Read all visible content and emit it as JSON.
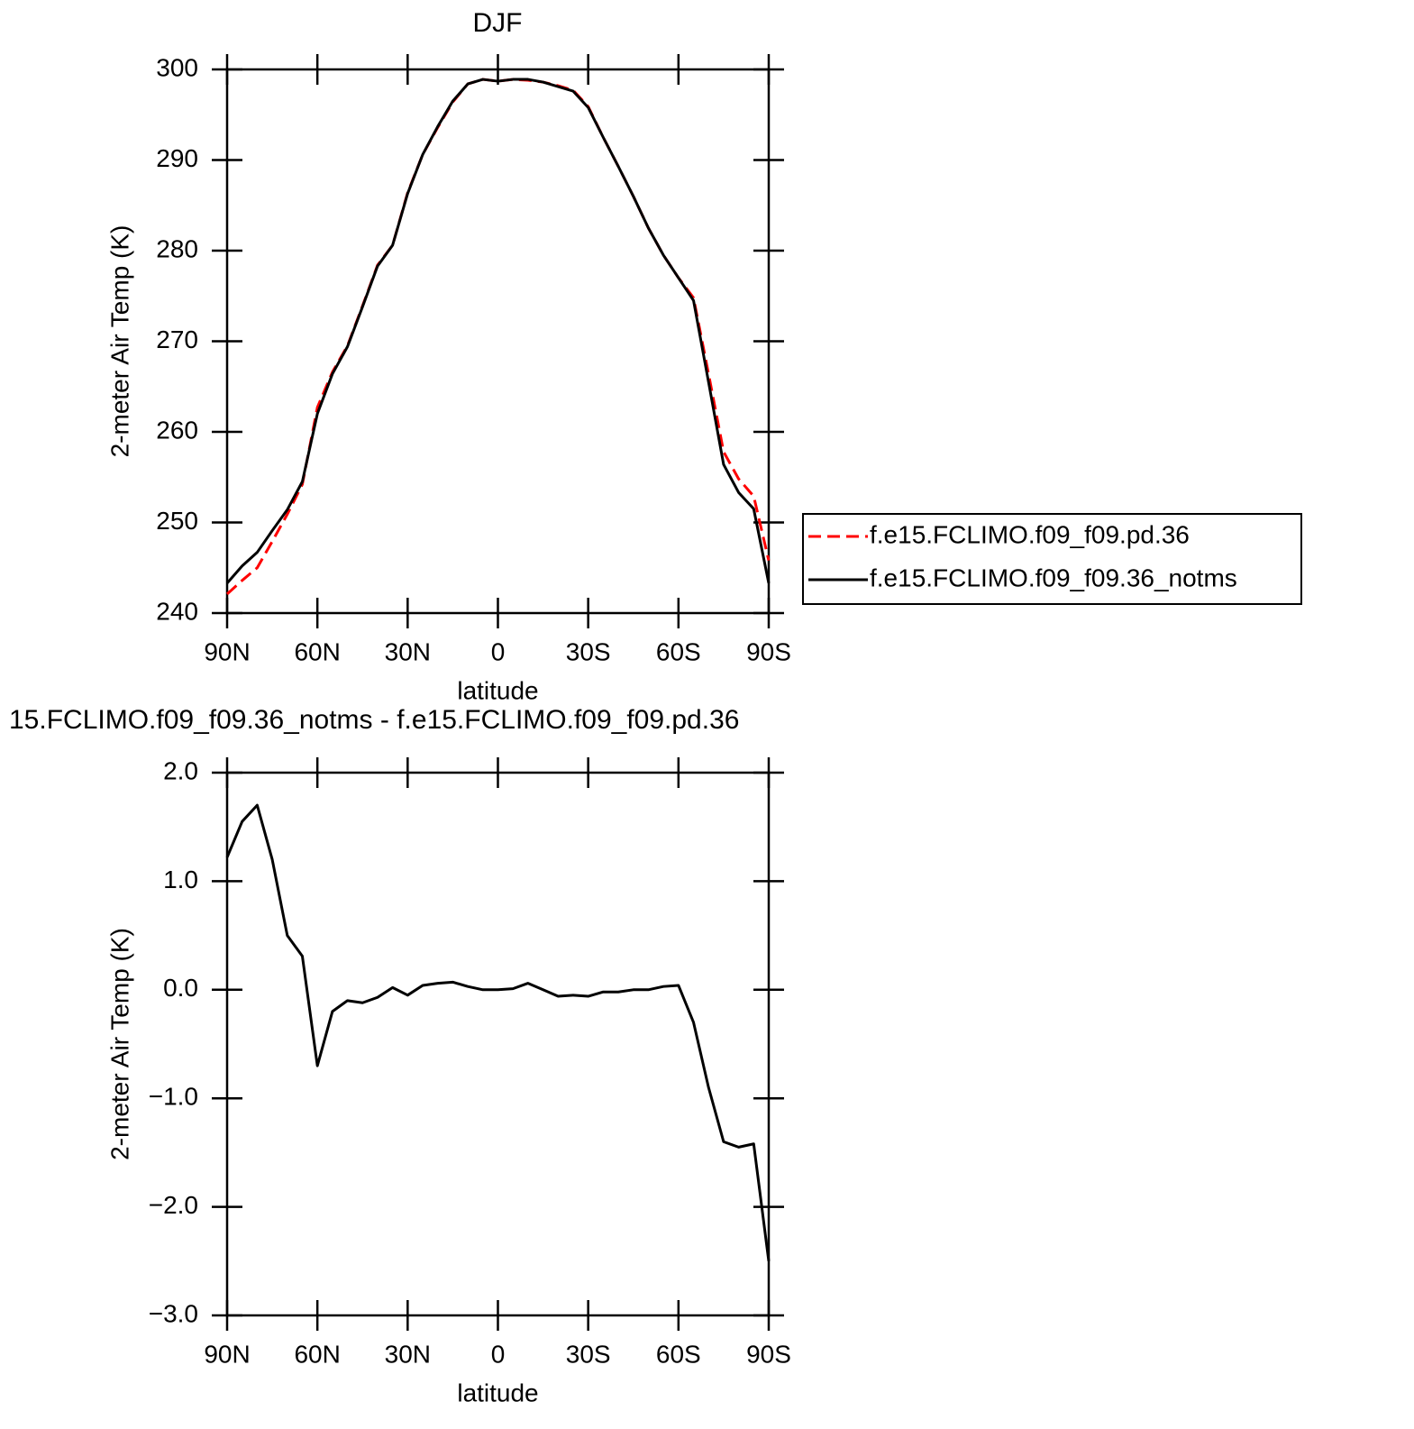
{
  "chart_data": [
    {
      "type": "line",
      "title": "DJF",
      "xlabel": "latitude",
      "ylabel": "2-meter Air Temp (K)",
      "x": [
        90,
        85,
        80,
        75,
        70,
        65,
        60,
        55,
        50,
        45,
        40,
        35,
        30,
        25,
        20,
        15,
        10,
        5,
        0,
        -5,
        -10,
        -15,
        -20,
        -25,
        -30,
        -35,
        -40,
        -45,
        -50,
        -55,
        -60,
        -65,
        -70,
        -75,
        -80,
        -85,
        -90
      ],
      "series": [
        {
          "name": "f.e15.FCLIMO.f09_f09.pd.36",
          "color": "#ff0000",
          "style": "dashed",
          "values": [
            242.1,
            243.6,
            245.0,
            247.9,
            250.9,
            254.2,
            262.7,
            266.6,
            269.5,
            273.9,
            278.4,
            280.6,
            286.4,
            290.6,
            293.6,
            296.4,
            298.4,
            298.9,
            298.7,
            298.9,
            298.8,
            298.6,
            298.2,
            297.7,
            295.9,
            292.5,
            289.3,
            286.0,
            282.5,
            279.5,
            277.0,
            274.8,
            266.4,
            257.8,
            254.8,
            252.9,
            245.8
          ]
        },
        {
          "name": "f.e15.FCLIMO.f09_f09.36_notms",
          "color": "#000000",
          "style": "solid",
          "values": [
            243.3,
            245.2,
            246.7,
            249.1,
            251.4,
            254.5,
            262.0,
            266.4,
            269.4,
            273.8,
            278.3,
            280.6,
            286.3,
            290.6,
            293.7,
            296.5,
            298.4,
            298.9,
            298.7,
            298.9,
            298.9,
            298.6,
            298.1,
            297.6,
            295.8,
            292.5,
            289.3,
            286.0,
            282.5,
            279.5,
            277.0,
            274.5,
            265.5,
            256.4,
            253.3,
            251.5,
            243.3
          ]
        }
      ],
      "xlim": [
        90,
        -90
      ],
      "xticks": [
        {
          "value": 90,
          "label": "90N"
        },
        {
          "value": 60,
          "label": "60N"
        },
        {
          "value": 30,
          "label": "30N"
        },
        0,
        {
          "value": -30,
          "label": "30S"
        },
        {
          "value": -60,
          "label": "60S"
        },
        {
          "value": -90,
          "label": "90S"
        }
      ],
      "ylim": [
        240,
        300
      ],
      "yticks": [
        240,
        250,
        260,
        270,
        280,
        290,
        300
      ],
      "legend": "right"
    },
    {
      "type": "line",
      "title": "15.FCLIMO.f09_f09.36_notms - f.e15.FCLIMO.f09_f09.pd.36",
      "xlabel": "latitude",
      "ylabel": "2-meter Air Temp (K)",
      "x": [
        90,
        85,
        80,
        75,
        70,
        65,
        60,
        55,
        50,
        45,
        40,
        35,
        30,
        25,
        20,
        15,
        10,
        5,
        0,
        -5,
        -10,
        -15,
        -20,
        -25,
        -30,
        -35,
        -40,
        -45,
        -50,
        -55,
        -60,
        -65,
        -70,
        -75,
        -80,
        -85,
        -90
      ],
      "color": "#000000",
      "values": [
        1.22,
        1.55,
        1.7,
        1.2,
        0.5,
        0.31,
        -0.7,
        -0.2,
        -0.1,
        -0.12,
        -0.07,
        0.02,
        -0.05,
        0.04,
        0.06,
        0.07,
        0.03,
        0.0,
        0.0,
        0.01,
        0.06,
        0.0,
        -0.06,
        -0.05,
        -0.06,
        -0.02,
        -0.02,
        0.0,
        0.0,
        0.03,
        0.04,
        -0.3,
        -0.9,
        -1.4,
        -1.45,
        -1.42,
        -2.5
      ],
      "xlim": [
        90,
        -90
      ],
      "xticks": [
        {
          "value": 90,
          "label": "90N"
        },
        {
          "value": 60,
          "label": "60N"
        },
        {
          "value": 30,
          "label": "30N"
        },
        0,
        {
          "value": -30,
          "label": "30S"
        },
        {
          "value": -60,
          "label": "60S"
        },
        {
          "value": -90,
          "label": "90S"
        }
      ],
      "ylim": [
        -3,
        2
      ],
      "yticks": [
        {
          "value": -3,
          "label": "−3.0"
        },
        {
          "value": -2,
          "label": "−2.0"
        },
        {
          "value": -1,
          "label": "−1.0"
        },
        {
          "value": 0,
          "label": "0.0"
        },
        {
          "value": 1,
          "label": "1.0"
        },
        {
          "value": 2,
          "label": "2.0"
        }
      ]
    }
  ]
}
